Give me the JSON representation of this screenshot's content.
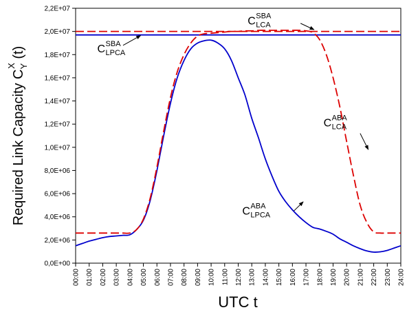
{
  "chart_data": {
    "type": "line",
    "xlabel": "UTC t",
    "ylabel_main": "Required Link Capacity C",
    "ylabel_sup": "X",
    "ylabel_sub": "Y",
    "ylabel_suffix": " (t)",
    "ylim": [
      0,
      22000000
    ],
    "xlim": [
      0,
      24
    ],
    "grid": false,
    "y_ticks": [
      {
        "value": 0,
        "label": "0,0E+00"
      },
      {
        "value": 2000000,
        "label": "2,0E+06"
      },
      {
        "value": 4000000,
        "label": "4,0E+06"
      },
      {
        "value": 6000000,
        "label": "6,0E+06"
      },
      {
        "value": 8000000,
        "label": "8,0E+06"
      },
      {
        "value": 10000000,
        "label": "1,0E+07"
      },
      {
        "value": 12000000,
        "label": "1,2E+07"
      },
      {
        "value": 14000000,
        "label": "1,4E+07"
      },
      {
        "value": 16000000,
        "label": "1,6E+07"
      },
      {
        "value": 18000000,
        "label": "1,8E+07"
      },
      {
        "value": 20000000,
        "label": "2,0E+07"
      },
      {
        "value": 22000000,
        "label": "2,2E+07"
      }
    ],
    "x_ticks": [
      {
        "value": 0,
        "label": "00:00"
      },
      {
        "value": 1,
        "label": "01:00"
      },
      {
        "value": 2,
        "label": "02:00"
      },
      {
        "value": 3,
        "label": "03:00"
      },
      {
        "value": 4,
        "label": "04:00"
      },
      {
        "value": 5,
        "label": "05:00"
      },
      {
        "value": 6,
        "label": "06:00"
      },
      {
        "value": 7,
        "label": "07:00"
      },
      {
        "value": 8,
        "label": "08:00"
      },
      {
        "value": 9,
        "label": "09:00"
      },
      {
        "value": 10,
        "label": "10:00"
      },
      {
        "value": 11,
        "label": "11:00"
      },
      {
        "value": 12,
        "label": "12:00"
      },
      {
        "value": 13,
        "label": "13:00"
      },
      {
        "value": 14,
        "label": "14:00"
      },
      {
        "value": 15,
        "label": "15:00"
      },
      {
        "value": 16,
        "label": "16:00"
      },
      {
        "value": 17,
        "label": "17:00"
      },
      {
        "value": 18,
        "label": "18:00"
      },
      {
        "value": 19,
        "label": "19:00"
      },
      {
        "value": 20,
        "label": "20:00"
      },
      {
        "value": 21,
        "label": "21:00"
      },
      {
        "value": 22,
        "label": "22:00"
      },
      {
        "value": 23,
        "label": "23:00"
      },
      {
        "value": 24,
        "label": "24:00"
      }
    ],
    "series": [
      {
        "key": "sba_lpca",
        "color": "#0000cc",
        "dash": "solid",
        "x": [
          0,
          24
        ],
        "y": [
          19700000,
          19700000
        ]
      },
      {
        "key": "sba_lca",
        "color": "#dd0000",
        "dash": "dashed",
        "x": [
          0,
          24
        ],
        "y": [
          20000000,
          20000000
        ]
      },
      {
        "key": "aba_lpca",
        "color": "#0000cc",
        "dash": "solid",
        "x": [
          0,
          0.5,
          1,
          1.5,
          2,
          2.5,
          3,
          3.5,
          4,
          4.5,
          5,
          5.5,
          6,
          6.5,
          7,
          7.5,
          8,
          8.5,
          9,
          9.5,
          10,
          10.5,
          11,
          11.5,
          12,
          12.5,
          13,
          13.5,
          14,
          14.5,
          15,
          15.5,
          16,
          16.5,
          17,
          17.5,
          18,
          18.5,
          19,
          19.5,
          20,
          20.5,
          21,
          21.5,
          22,
          22.5,
          23,
          23.5,
          24
        ],
        "y": [
          1500000,
          1700000,
          1900000,
          2050000,
          2200000,
          2300000,
          2350000,
          2400000,
          2450000,
          2900000,
          3700000,
          5400000,
          8000000,
          11000000,
          13800000,
          16000000,
          17500000,
          18500000,
          19000000,
          19200000,
          19250000,
          19000000,
          18500000,
          17500000,
          16000000,
          14500000,
          12500000,
          10800000,
          9000000,
          7500000,
          6200000,
          5300000,
          4600000,
          4000000,
          3500000,
          3100000,
          2950000,
          2750000,
          2500000,
          2100000,
          1800000,
          1500000,
          1250000,
          1050000,
          950000,
          980000,
          1100000,
          1300000,
          1500000
        ]
      },
      {
        "key": "aba_lca",
        "color": "#dd0000",
        "dash": "dashed",
        "x": [
          0,
          0.5,
          1,
          1.5,
          2,
          2.5,
          3,
          3.5,
          4,
          4.5,
          5,
          5.5,
          6,
          6.5,
          7,
          7.5,
          8,
          8.5,
          9,
          9.5,
          10,
          10.5,
          11,
          11.5,
          12,
          12.5,
          13,
          13.5,
          14,
          14.5,
          15,
          15.5,
          16,
          16.5,
          17,
          17.5,
          18,
          18.5,
          19,
          19.5,
          20,
          20.5,
          21,
          21.5,
          22,
          22.5,
          23,
          23.5,
          24
        ],
        "y": [
          2600000,
          2600000,
          2600000,
          2600000,
          2600000,
          2600000,
          2600000,
          2600000,
          2600000,
          2900000,
          3800000,
          5600000,
          8300000,
          11400000,
          14300000,
          16500000,
          18000000,
          19000000,
          19600000,
          19800000,
          19850000,
          19900000,
          19950000,
          20000000,
          20000000,
          20050000,
          20050000,
          20100000,
          20100000,
          20100000,
          20100000,
          20100000,
          20100000,
          20100000,
          20050000,
          19900000,
          19300000,
          18000000,
          16000000,
          13500000,
          10500000,
          7600000,
          5000000,
          3500000,
          2700000,
          2600000,
          2600000,
          2600000,
          2600000
        ]
      }
    ],
    "annotations": [
      {
        "key": "sba_lpca",
        "main": "C",
        "sup": "SBA",
        "sub": "LPCA",
        "x": 1.6,
        "y": 18200000,
        "arrow_from": [
          3.5,
          18800000
        ],
        "arrow_to": [
          4.8,
          19650000
        ]
      },
      {
        "key": "sba_lca",
        "main": "C",
        "sup": "SBA",
        "sub": "LCA",
        "x": 12.7,
        "y": 20600000,
        "arrow_from": [
          16.6,
          20700000
        ],
        "arrow_to": [
          17.6,
          20150000
        ]
      },
      {
        "key": "aba_lca",
        "main": "C",
        "sup": "ABA",
        "sub": "LCA",
        "x": 18.3,
        "y": 11800000,
        "arrow_from": [
          21.0,
          11200000
        ],
        "arrow_to": [
          21.6,
          9800000
        ]
      },
      {
        "key": "aba_lpca",
        "main": "C",
        "sup": "ABA",
        "sub": "LPCA",
        "x": 12.3,
        "y": 4200000,
        "arrow_from": [
          16.1,
          4500000
        ],
        "arrow_to": [
          16.8,
          5300000
        ]
      }
    ]
  }
}
